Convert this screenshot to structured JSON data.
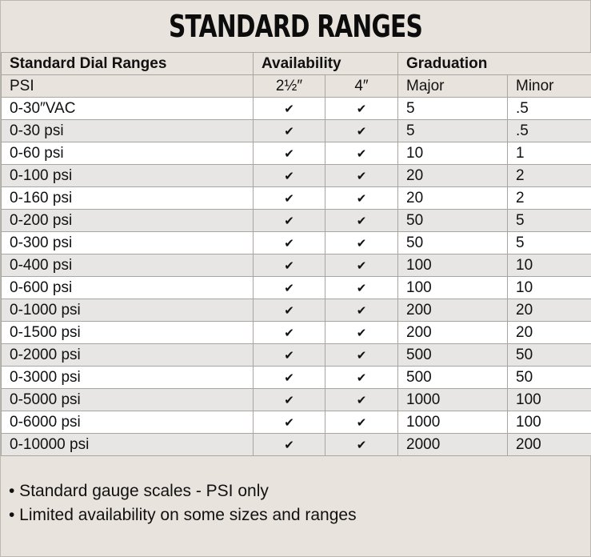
{
  "title": "STANDARD RANGES",
  "headers": {
    "dial_ranges": "Standard Dial Ranges",
    "availability": "Availability",
    "graduation": "Graduation",
    "unit": "PSI",
    "size_small": "2½″",
    "size_large": "4″",
    "major": "Major",
    "minor": "Minor"
  },
  "check_glyph": "✔",
  "rows": [
    {
      "range": "0-30″VAC",
      "major": "5",
      "minor": ".5"
    },
    {
      "range": "0-30 psi",
      "major": "5",
      "minor": ".5"
    },
    {
      "range": "0-60 psi",
      "major": "10",
      "minor": "1"
    },
    {
      "range": "0-100 psi",
      "major": "20",
      "minor": "2"
    },
    {
      "range": "0-160 psi",
      "major": "20",
      "minor": "2"
    },
    {
      "range": "0-200 psi",
      "major": "50",
      "minor": "5"
    },
    {
      "range": "0-300 psi",
      "major": "50",
      "minor": "5"
    },
    {
      "range": "0-400 psi",
      "major": "100",
      "minor": "10"
    },
    {
      "range": "0-600 psi",
      "major": "100",
      "minor": "10"
    },
    {
      "range": "0-1000 psi",
      "major": "200",
      "minor": "20"
    },
    {
      "range": "0-1500 psi",
      "major": "200",
      "minor": "20"
    },
    {
      "range": "0-2000 psi",
      "major": "500",
      "minor": "50"
    },
    {
      "range": "0-3000 psi",
      "major": "500",
      "minor": "50"
    },
    {
      "range": "0-5000 psi",
      "major": "1000",
      "minor": "100"
    },
    {
      "range": "0-6000 psi",
      "major": "1000",
      "minor": "100"
    },
    {
      "range": "0-10000 psi",
      "major": "2000",
      "minor": "200"
    }
  ],
  "notes": [
    "• Standard gauge scales - PSI only",
    "• Limited availability on some sizes and ranges"
  ]
}
